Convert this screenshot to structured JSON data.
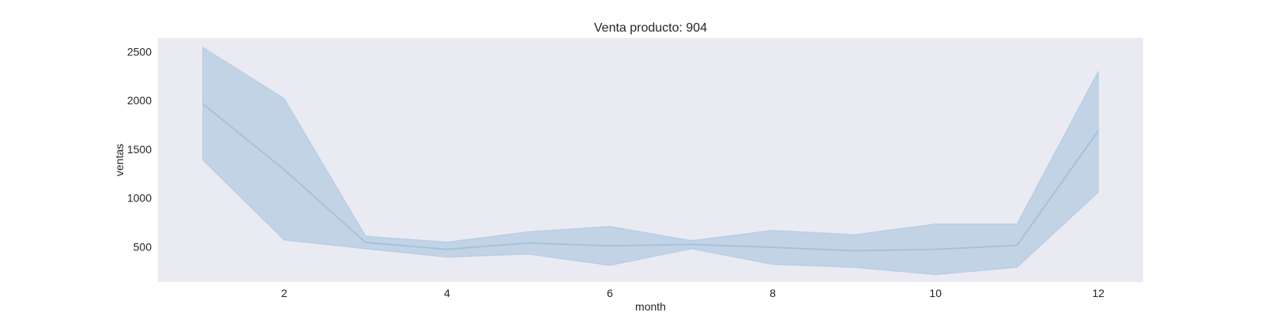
{
  "chart_data": {
    "type": "line",
    "title": "Venta producto: 904",
    "xlabel": "month",
    "ylabel": "ventas",
    "x": [
      1,
      2,
      3,
      4,
      5,
      6,
      7,
      8,
      9,
      10,
      11,
      12
    ],
    "series": [
      {
        "values": [
          1965,
          1290,
          545,
          475,
          540,
          510,
          525,
          495,
          460,
          475,
          515,
          1690
        ],
        "ci_low": [
          1390,
          570,
          480,
          395,
          425,
          310,
          480,
          320,
          290,
          215,
          290,
          1060
        ],
        "ci_high": [
          2545,
          2020,
          610,
          550,
          655,
          710,
          565,
          670,
          625,
          735,
          735,
          2300
        ]
      }
    ],
    "xticks": [
      2,
      4,
      6,
      8,
      10,
      12
    ],
    "yticks": [
      500,
      1000,
      1500,
      2000,
      2500
    ],
    "xlim": [
      0.45,
      12.55
    ],
    "ylim": [
      140,
      2640
    ],
    "grid": false,
    "colors": {
      "background": "#eaeaf2",
      "line": "#9fc2dc",
      "band": "#c2d3e6",
      "band_edge": "#9fc2dc"
    }
  }
}
